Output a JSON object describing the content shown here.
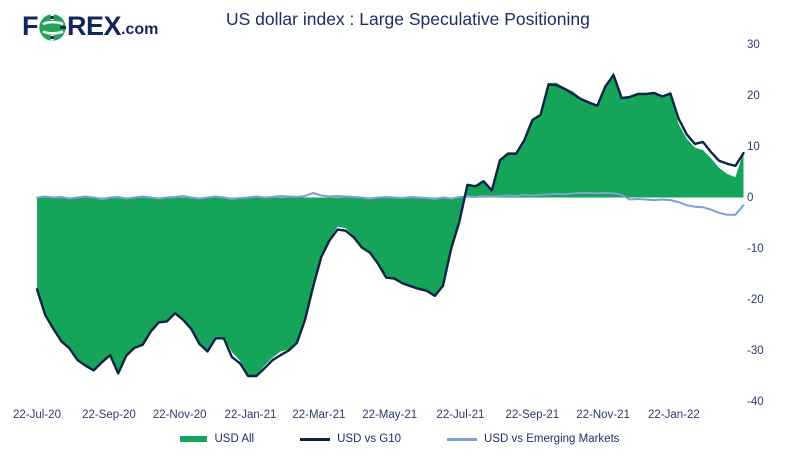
{
  "header": {
    "logo_part1": "F",
    "logo_part2": "REX",
    "logo_suffix": ".com",
    "title": "US dollar index : Large Speculative Positioning"
  },
  "colors": {
    "usd_all_green": "#16a45a",
    "usd_g10_navy": "#0b2444",
    "usd_em_blue": "#7aa0d4",
    "text_navy": "#1e2c66",
    "logo_navy": "#13265c"
  },
  "chart_data": {
    "type": "area",
    "title": "US dollar index : Large Speculative Positioning",
    "xlabel": "",
    "ylabel": "",
    "ylim": [
      -40,
      30
    ],
    "y_ticks": [
      30,
      20,
      10,
      0,
      -10,
      -20,
      -30,
      -40
    ],
    "grid": false,
    "legend_position": "bottom",
    "x_unit": "weeks since 22-Jul-20",
    "x_labels": [
      "22-Jul-20",
      "22-Sep-20",
      "22-Nov-20",
      "22-Jan-21",
      "22-Mar-21",
      "22-May-21",
      "22-Jul-21",
      "22-Sep-21",
      "22-Nov-21",
      "22-Jan-22"
    ],
    "x_label_weeks": [
      0,
      8.86,
      17.57,
      26.29,
      34.71,
      43.43,
      52.14,
      61.0,
      69.71,
      78.43
    ],
    "series": [
      {
        "name": "USD All",
        "type": "area",
        "color": "#16a45a",
        "values": [
          -18,
          -23,
          -25.7,
          -28.2,
          -29.6,
          -31.9,
          -33,
          -33.9,
          -32.3,
          -30.9,
          -34.5,
          -31,
          -29.5,
          -28.9,
          -26.3,
          -24.5,
          -24.3,
          -22.7,
          -24,
          -25.8,
          -28.7,
          -30.2,
          -27.4,
          -27.4,
          -30.3,
          -32,
          -34.8,
          -34.8,
          -33,
          -31.4,
          -30.2,
          -29.8,
          -28.3,
          -23.8,
          -17,
          -11.5,
          -8.3,
          -5.7,
          -6,
          -7.6,
          -9.6,
          -10.8,
          -13,
          -15.5,
          -15.8,
          -16.6,
          -17.2,
          -17.8,
          -18.2,
          -19.2,
          -17.2,
          -9.8,
          -4.6,
          2.6,
          2.3,
          3.3,
          1.5,
          7.4,
          8.7,
          8.7,
          11.3,
          15.3,
          16.3,
          22.4,
          22.5,
          21.5,
          20.8,
          19.5,
          18.5,
          18,
          21.8,
          24.6,
          19.3,
          19.8,
          20.2,
          20.2,
          20.3,
          19.6,
          20.2,
          14.5,
          11.5,
          9.8,
          9.3,
          7.7,
          5.8,
          4.6,
          4,
          8.9
        ]
      },
      {
        "name": "USD vs G10",
        "type": "line",
        "color": "#0b2444",
        "values": [
          -18,
          -23,
          -25.7,
          -28.2,
          -29.6,
          -31.9,
          -33,
          -33.9,
          -32.3,
          -30.9,
          -34.5,
          -31,
          -29.5,
          -28.9,
          -26.3,
          -24.5,
          -24.3,
          -22.7,
          -24,
          -25.8,
          -28.7,
          -30.2,
          -27.6,
          -27.6,
          -31.3,
          -32.5,
          -35,
          -35,
          -33.5,
          -31.9,
          -30.9,
          -30,
          -28.5,
          -24,
          -17.5,
          -11.7,
          -8.5,
          -6.3,
          -6.5,
          -7.8,
          -9.8,
          -10.8,
          -13,
          -15.7,
          -15.9,
          -16.8,
          -17.4,
          -17.9,
          -18.3,
          -19.3,
          -17.3,
          -10,
          -4.8,
          2.5,
          2.2,
          3.2,
          1.4,
          7.3,
          8.6,
          8.6,
          11.2,
          15.2,
          16.2,
          22.2,
          22,
          21.3,
          20.3,
          19.3,
          18.6,
          18,
          21.8,
          24,
          19.5,
          19.7,
          20.3,
          20.3,
          20.5,
          19.8,
          20.4,
          15.5,
          12.4,
          10.5,
          10.9,
          8.9,
          7.2,
          6.6,
          6.2,
          8.7
        ]
      },
      {
        "name": "USD vs Emerging Markets",
        "type": "line",
        "color": "#7aa0d4",
        "values": [
          0,
          0.2,
          0,
          0.1,
          -0.2,
          0,
          0.2,
          0,
          -0.3,
          0,
          0.1,
          -0.2,
          0,
          0.2,
          0,
          -0.2,
          0,
          0.1,
          0.3,
          0,
          -0.2,
          0,
          0.2,
          0,
          -0.3,
          -0.1,
          0,
          0.2,
          0,
          0.1,
          0.3,
          0.2,
          0.1,
          0.3,
          0.9,
          0.4,
          0.2,
          0.3,
          0.2,
          0.1,
          0,
          -0.2,
          0,
          0.1,
          0,
          -0.1,
          0.1,
          0,
          -0.1,
          -0.3,
          0,
          -0.2,
          0.1,
          0.2,
          0.1,
          0.3,
          0.2,
          0.3,
          0.4,
          0.3,
          0.5,
          0.4,
          0.5,
          0.6,
          0.7,
          0.6,
          0.8,
          0.9,
          0.9,
          0.8,
          0.9,
          0.8,
          0.5,
          -0.4,
          -0.3,
          -0.4,
          -0.5,
          -0.4,
          -0.5,
          -0.9,
          -1.5,
          -1.8,
          -1.9,
          -2.4,
          -3,
          -3.4,
          -3.4,
          -1.5
        ]
      }
    ]
  }
}
